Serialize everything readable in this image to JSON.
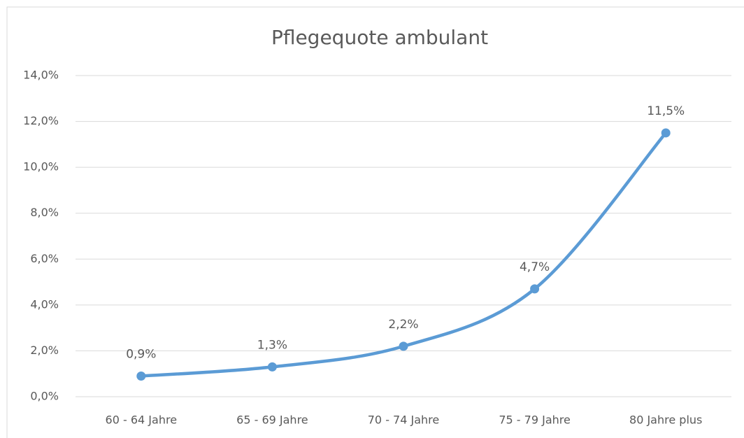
{
  "chart_data": {
    "type": "line",
    "title": "Pflegequote ambulant",
    "categories": [
      "60 - 64 Jahre",
      "65 - 69 Jahre",
      "70 - 74 Jahre",
      "75 - 79 Jahre",
      "80 Jahre plus"
    ],
    "values": [
      0.9,
      1.3,
      2.2,
      4.7,
      11.5
    ],
    "value_labels": [
      "0,9%",
      "1,3%",
      "2,2%",
      "4,7%",
      "11,5%"
    ],
    "color": "#5b9bd5",
    "ylim": [
      0,
      14
    ],
    "yticks": [
      {
        "value": 0,
        "label": "0,0%"
      },
      {
        "value": 2,
        "label": "2,0%"
      },
      {
        "value": 4,
        "label": "4,0%"
      },
      {
        "value": 6,
        "label": "6,0%"
      },
      {
        "value": 8,
        "label": "8,0%"
      },
      {
        "value": 10,
        "label": "10,0%"
      },
      {
        "value": 12,
        "label": "12,0%"
      },
      {
        "value": 14,
        "label": "14,0%"
      }
    ],
    "grid": true,
    "smooth": true
  }
}
